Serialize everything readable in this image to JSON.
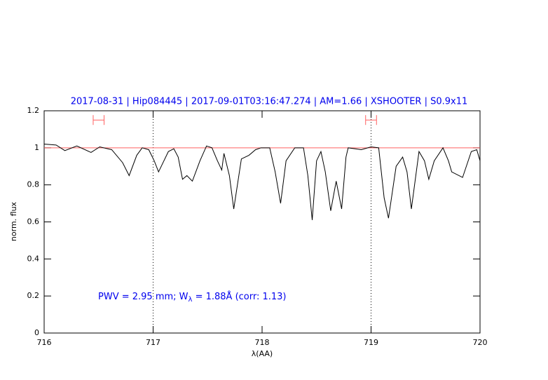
{
  "chart_data": {
    "type": "line",
    "title": "2017-08-31 | Hip084445 | 2017-09-01T03:16:47.274 | AM=1.66 | XSHOOTER | S0.9x11",
    "x_label": "λ(AA)",
    "y_label": "norm. flux",
    "annotation": [
      "PWV = 2.95 mm; W",
      "λ",
      " = 1.88Å (corr: 1.13)"
    ],
    "xlim": [
      716,
      720
    ],
    "ylim": [
      0,
      1.2
    ],
    "xticks": [
      716,
      717,
      718,
      719,
      720
    ],
    "yticks": [
      0,
      0.2,
      0.4,
      0.6,
      0.8,
      1,
      1.2
    ],
    "reference_line": 1,
    "reference_color": "#ff6060",
    "vlines": [
      717,
      719
    ],
    "markers": [
      {
        "x": [
          716.45,
          716.55
        ],
        "y": 1.15
      },
      {
        "x": [
          718.95,
          719.05
        ],
        "y": 1.15
      }
    ],
    "marker_color": "#ff6060",
    "series": [
      {
        "color": "#000000",
        "x": [
          716.0,
          716.11,
          716.19,
          716.3,
          716.43,
          716.51,
          716.62,
          716.72,
          716.78,
          716.85,
          716.9,
          716.96,
          717.01,
          717.05,
          717.14,
          717.19,
          717.23,
          717.27,
          717.31,
          717.36,
          717.43,
          717.49,
          717.54,
          717.59,
          717.63,
          717.65,
          717.7,
          717.74,
          717.81,
          717.88,
          717.94,
          717.99,
          718.07,
          718.12,
          718.17,
          718.22,
          718.3,
          718.38,
          718.42,
          718.46,
          718.5,
          718.54,
          718.58,
          718.63,
          718.68,
          718.73,
          718.77,
          718.79,
          718.91,
          719.0,
          719.07,
          719.12,
          719.16,
          719.23,
          719.29,
          719.33,
          719.37,
          719.44,
          719.49,
          719.53,
          719.58,
          719.66,
          719.71,
          719.74,
          719.84,
          719.92,
          719.97,
          720.0
        ],
        "values": [
          1.02,
          1.015,
          0.985,
          1.01,
          0.975,
          1.005,
          0.99,
          0.92,
          0.85,
          0.96,
          1.0,
          0.99,
          0.93,
          0.87,
          0.98,
          0.995,
          0.95,
          0.83,
          0.85,
          0.82,
          0.93,
          1.01,
          1.0,
          0.93,
          0.88,
          0.97,
          0.85,
          0.67,
          0.94,
          0.96,
          0.99,
          1.0,
          1.0,
          0.87,
          0.7,
          0.93,
          1.0,
          1.0,
          0.85,
          0.61,
          0.93,
          0.98,
          0.87,
          0.66,
          0.82,
          0.67,
          0.95,
          1.0,
          0.99,
          1.005,
          1.0,
          0.73,
          0.62,
          0.9,
          0.95,
          0.87,
          0.67,
          0.98,
          0.93,
          0.83,
          0.93,
          1.0,
          0.93,
          0.87,
          0.84,
          0.98,
          0.99,
          0.93
        ]
      }
    ]
  }
}
